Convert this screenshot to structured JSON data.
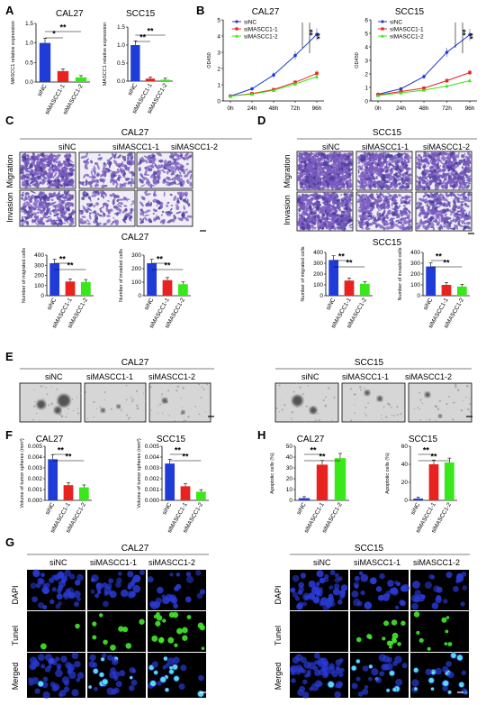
{
  "panels": {
    "A": "A",
    "B": "B",
    "C": "C",
    "D": "D",
    "E": "E",
    "F": "F",
    "G": "G",
    "H": "H"
  },
  "groups": [
    "siNC",
    "siMASCC1-1",
    "siMASCC1-2"
  ],
  "rows": {
    "migration": "Migration",
    "invasion": "Invasion",
    "dapi": "DAPI",
    "tunel": "Tunel",
    "merged": "Merged"
  },
  "headers": {
    "A_cal": "CAL27",
    "A_scc": "SCC15",
    "B_cal": "CAL27",
    "B_scc": "SCC15",
    "C": "CAL27",
    "C2": "CAL27",
    "D": "SCC15",
    "D2": "SCC15",
    "E_cal": "CAL27",
    "E_scc": "SCC15",
    "F_cal": "CAL27",
    "F_scc": "SCC15",
    "H_cal": "CAL27",
    "H_scc": "SCC15",
    "G_cal": "CAL27",
    "G_scc": "SCC15"
  },
  "sig": "**",
  "sig1": "*",
  "colors": {
    "siNC": "#1f3bd8",
    "si1": "#e8231f",
    "si2": "#39e81a",
    "stain": "#7b5bbf",
    "dapi": "#2a3bd6",
    "tunel": "#43e82a"
  },
  "chart_data": [
    {
      "id": "A1",
      "type": "bar",
      "categories": [
        "siNC",
        "siMASCC1-1",
        "siMASCC1-2"
      ],
      "values": [
        1.0,
        0.28,
        0.12
      ],
      "ylabel": "MASCC1 relative expression",
      "ylim": [
        0,
        1.5
      ],
      "yticks": [
        "0.0",
        "0.5",
        "1.0",
        "1.5"
      ]
    },
    {
      "id": "A2",
      "type": "bar",
      "categories": [
        "siNC",
        "siMASCC1-1",
        "siMASCC1-2"
      ],
      "values": [
        1.0,
        0.07,
        0.04
      ],
      "ylabel": "MASCC1 relative expression",
      "ylim": [
        0,
        1.5
      ],
      "yticks": [
        "0.0",
        "0.5",
        "1.0",
        "1.5"
      ]
    },
    {
      "id": "B1",
      "type": "line",
      "x": [
        "0h",
        "24h",
        "48h",
        "72h",
        "96h"
      ],
      "ylabel": "OD450",
      "ylim": [
        0,
        5
      ],
      "yticks": [
        "0",
        "1",
        "2",
        "3",
        "4",
        "5"
      ],
      "series": [
        {
          "name": "siNC",
          "values": [
            0.3,
            0.75,
            1.6,
            2.8,
            4.1
          ]
        },
        {
          "name": "siMASCC1-1",
          "values": [
            0.3,
            0.45,
            0.7,
            1.15,
            1.7
          ]
        },
        {
          "name": "siMASCC1-2",
          "values": [
            0.3,
            0.42,
            0.65,
            1.05,
            1.5
          ]
        }
      ]
    },
    {
      "id": "B2",
      "type": "line",
      "x": [
        "0h",
        "24h",
        "48h",
        "72h",
        "96h"
      ],
      "ylabel": "OD450",
      "ylim": [
        0,
        6
      ],
      "yticks": [
        "0",
        "1",
        "2",
        "3",
        "4",
        "5",
        "6"
      ],
      "series": [
        {
          "name": "siNC",
          "values": [
            0.5,
            0.9,
            1.8,
            3.6,
            4.9
          ]
        },
        {
          "name": "siMASCC1-1",
          "values": [
            0.45,
            0.7,
            0.95,
            1.5,
            2.1
          ]
        },
        {
          "name": "siMASCC1-2",
          "values": [
            0.4,
            0.6,
            0.8,
            1.1,
            1.5
          ]
        }
      ]
    },
    {
      "id": "C1",
      "type": "bar",
      "categories": [
        "siNC",
        "siMASCC1-1",
        "siMASCC1-2"
      ],
      "values": [
        320,
        140,
        135
      ],
      "ylabel": "Number of migrated cells",
      "ylim": [
        0,
        400
      ],
      "yticks": [
        "0",
        "100",
        "200",
        "300",
        "400"
      ]
    },
    {
      "id": "C2",
      "type": "bar",
      "categories": [
        "siNC",
        "siMASCC1-1",
        "siMASCC1-2"
      ],
      "values": [
        240,
        115,
        85
      ],
      "ylabel": "Number of invaded cells",
      "ylim": [
        0,
        300
      ],
      "yticks": [
        "0",
        "100",
        "200",
        "300"
      ]
    },
    {
      "id": "D1",
      "type": "bar",
      "categories": [
        "siNC",
        "siMASCC1-1",
        "siMASCC1-2"
      ],
      "values": [
        330,
        140,
        110
      ],
      "ylabel": "Number of migrated cells",
      "ylim": [
        0,
        400
      ],
      "yticks": [
        "0",
        "100",
        "200",
        "300",
        "400"
      ]
    },
    {
      "id": "D2",
      "type": "bar",
      "categories": [
        "siNC",
        "siMASCC1-1",
        "siMASCC1-2"
      ],
      "values": [
        270,
        100,
        85
      ],
      "ylabel": "Number of invaded cells",
      "ylim": [
        0,
        400
      ],
      "yticks": [
        "0",
        "100",
        "200",
        "300",
        "400"
      ]
    },
    {
      "id": "F1",
      "type": "bar",
      "categories": [
        "siNC",
        "siMASCC1-1",
        "siMASCC1-2"
      ],
      "values": [
        0.0038,
        0.0014,
        0.0012
      ],
      "ylabel": "Volume of tumor spheres (mm³)",
      "ylim": [
        0,
        0.005
      ],
      "yticks": [
        "0.000",
        "0.001",
        "0.002",
        "0.003",
        "0.004",
        "0.005"
      ]
    },
    {
      "id": "F2",
      "type": "bar",
      "categories": [
        "siNC",
        "siMASCC1-1",
        "siMASCC1-2"
      ],
      "values": [
        0.0034,
        0.0013,
        0.0008
      ],
      "ylabel": "Volume of tumor spheres (mm³)",
      "ylim": [
        0,
        0.005
      ],
      "yticks": [
        "0.000",
        "0.001",
        "0.002",
        "0.003",
        "0.004",
        "0.005"
      ]
    },
    {
      "id": "H1",
      "type": "bar",
      "categories": [
        "siNC",
        "siMASCC1-1",
        "siMASCC1-2"
      ],
      "values": [
        2,
        33,
        39
      ],
      "ylabel": "Apoptotic cells (%)",
      "ylim": [
        0,
        50
      ],
      "yticks": [
        "0",
        "10",
        "20",
        "30",
        "40",
        "50"
      ]
    },
    {
      "id": "H2",
      "type": "bar",
      "categories": [
        "siNC",
        "siMASCC1-1",
        "siMASCC1-2"
      ],
      "values": [
        2,
        40,
        42
      ],
      "ylabel": "Apoptotic cells (%)",
      "ylim": [
        0,
        60
      ],
      "yticks": [
        "0",
        "20",
        "40",
        "60"
      ]
    }
  ]
}
